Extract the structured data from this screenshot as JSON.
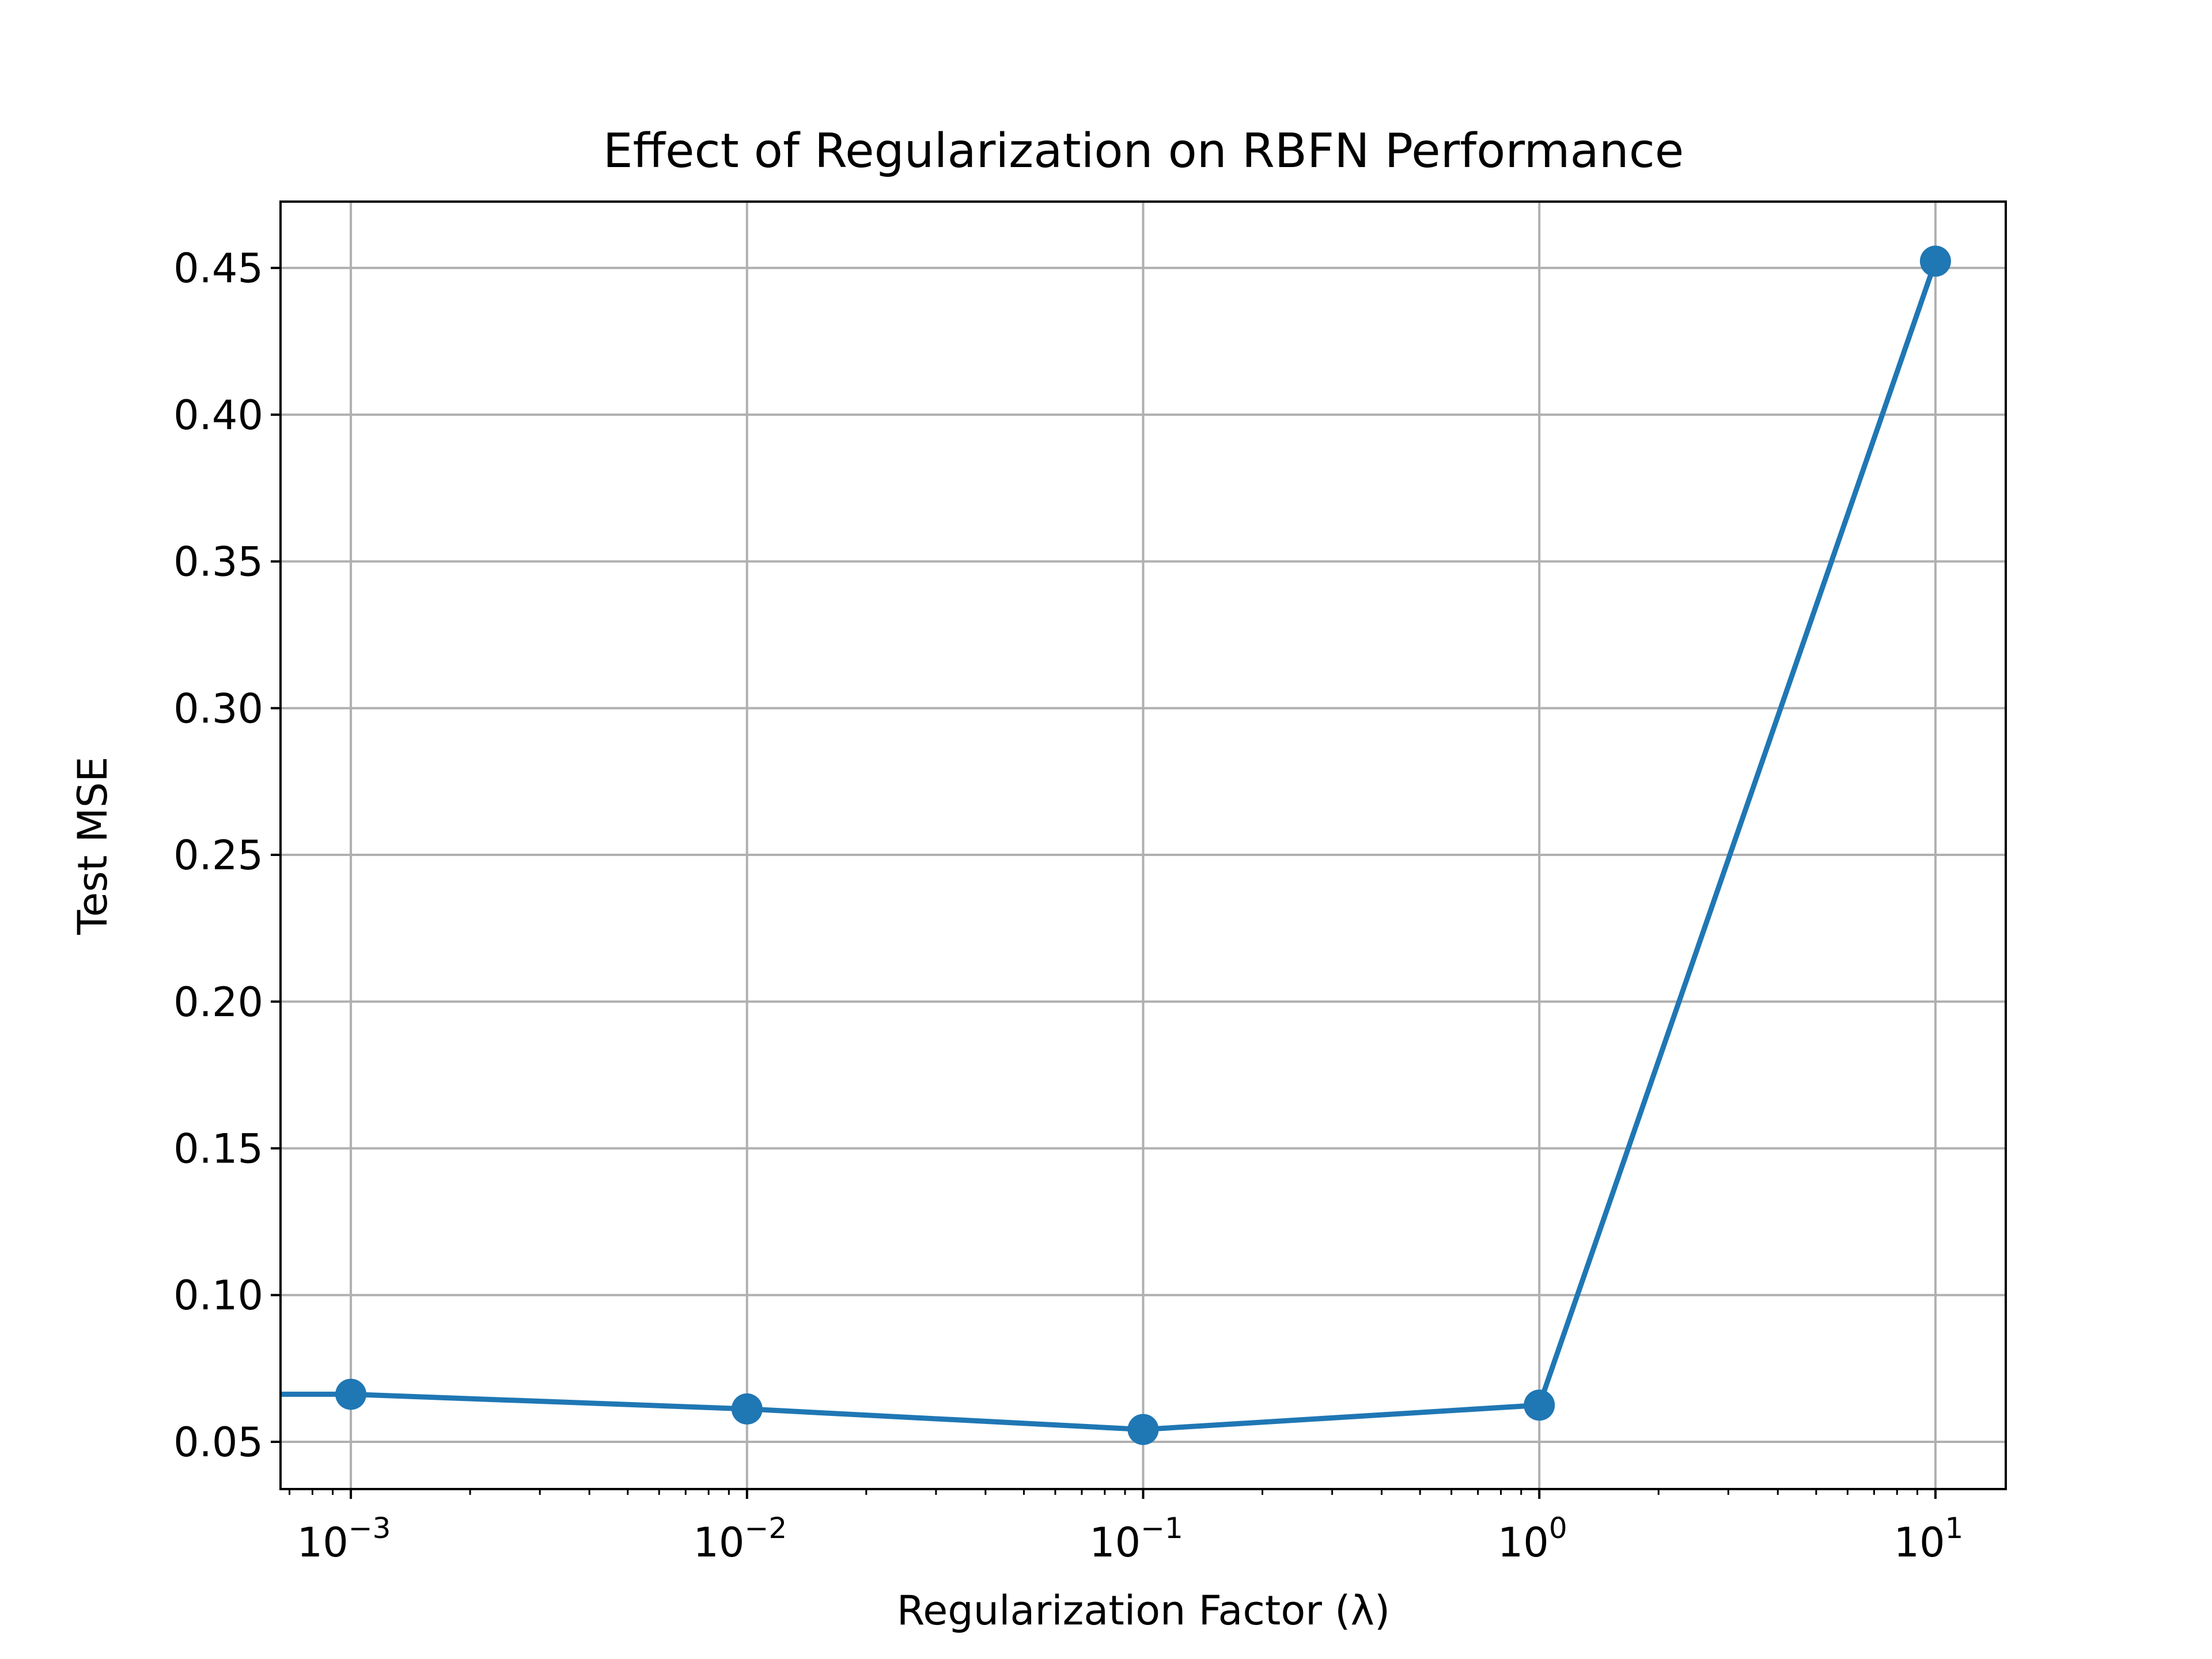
{
  "chart_data": {
    "type": "line",
    "title": "Effect of Regularization on RBFN Performance",
    "xlabel": "Regularization Factor (λ)",
    "ylabel": "Test MSE",
    "x_scale": "log",
    "x": [
      0.001,
      0.01,
      0.1,
      1,
      10
    ],
    "x_ticks": [
      {
        "value": 0.001,
        "base": "10",
        "exp": "−3"
      },
      {
        "value": 0.01,
        "base": "10",
        "exp": "−2"
      },
      {
        "value": 0.1,
        "base": "10",
        "exp": "−1"
      },
      {
        "value": 1,
        "base": "10",
        "exp": "0"
      },
      {
        "value": 10,
        "base": "10",
        "exp": "1"
      }
    ],
    "y_ticks": [
      "0.05",
      "0.10",
      "0.15",
      "0.20",
      "0.25",
      "0.30",
      "0.35",
      "0.40",
      "0.45"
    ],
    "xlim": [
      0.0006645,
      15.05
    ],
    "ylim": [
      0.0339,
      0.4726
    ],
    "grid": true,
    "series": [
      {
        "values": [
          0.0662,
          0.0612,
          0.0542,
          0.0625,
          0.4523
        ],
        "color": "#1f77b4",
        "marker": "circle",
        "left_edge_value": 0.0662
      }
    ]
  }
}
